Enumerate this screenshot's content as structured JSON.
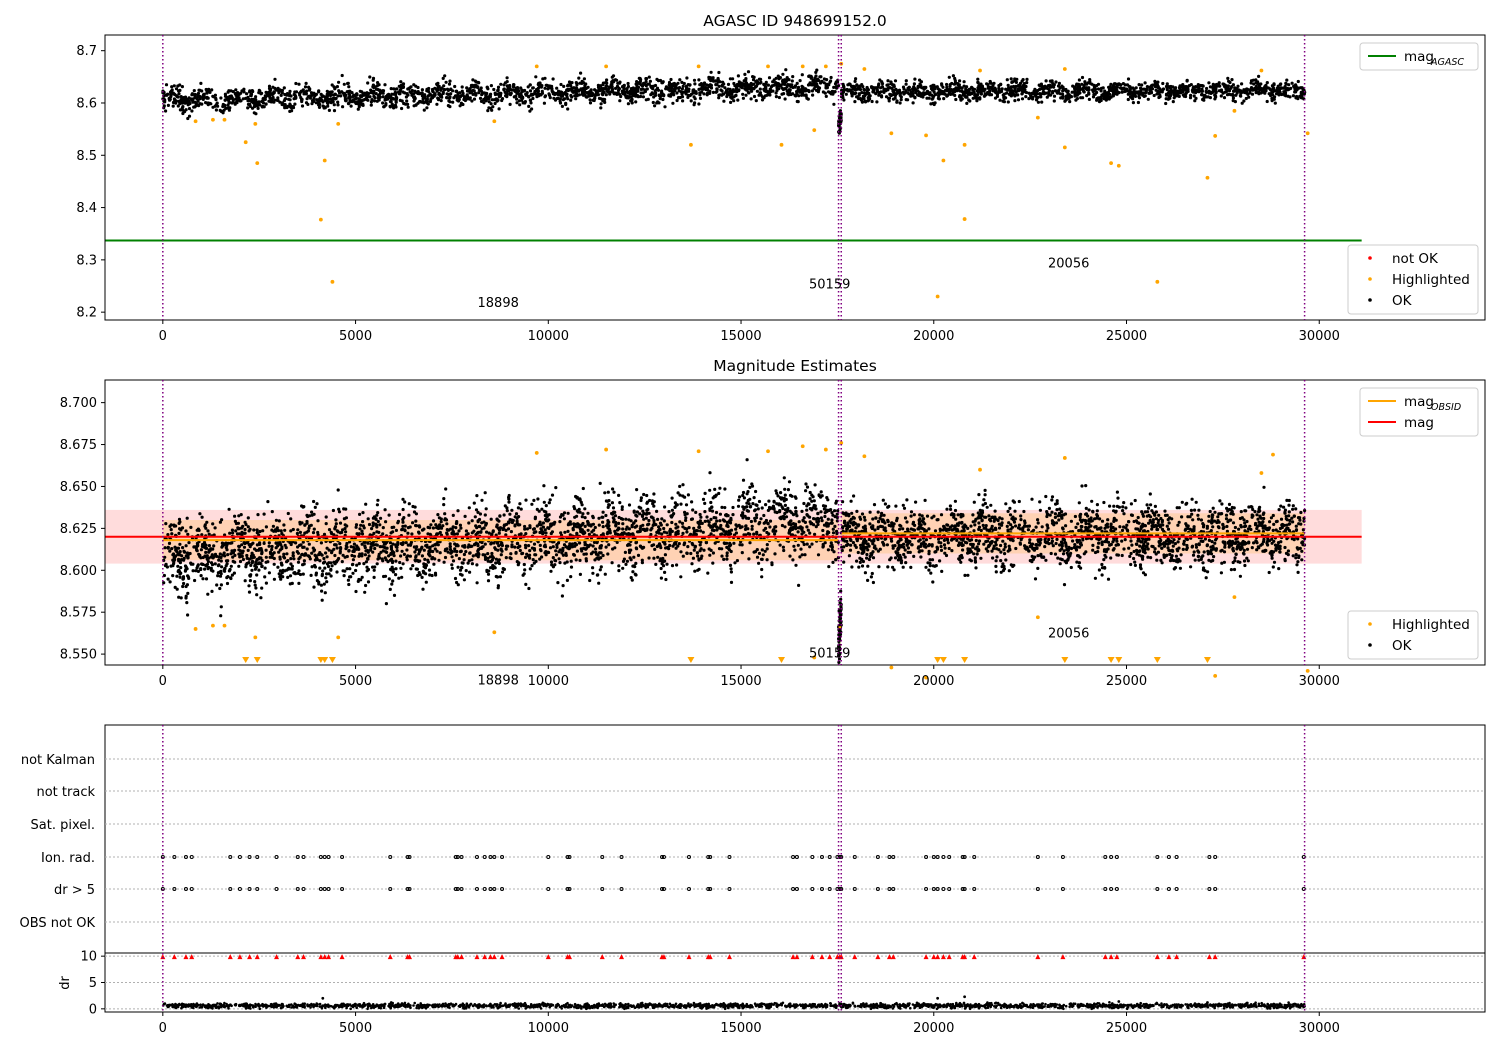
{
  "chart_data": [
    {
      "type": "scatter",
      "title": "AGASC ID 948699152.0",
      "xlim": [
        -1500,
        34300
      ],
      "ylim": [
        8.185,
        8.73
      ],
      "xticks": [
        0,
        5000,
        10000,
        15000,
        20000,
        25000,
        30000
      ],
      "yticks": [
        8.2,
        8.3,
        8.4,
        8.5,
        8.6,
        8.7
      ],
      "ytick_labels": [
        "8.2",
        "8.3",
        "8.4",
        "8.5",
        "8.6",
        "8.7"
      ],
      "obsid_boundaries": [
        0,
        17530,
        17600,
        29620
      ],
      "annotations": [
        {
          "text": "18898",
          "x": 8700,
          "y": 8.21
        },
        {
          "text": "50159",
          "x": 17300,
          "y": 8.245
        },
        {
          "text": "20056",
          "x": 23500,
          "y": 8.285
        }
      ],
      "series": [
        {
          "name": "OK",
          "color": "#000000",
          "segments": [
            {
              "x0": 0,
              "x1": 17530,
              "start": 8.605,
              "end": 8.632,
              "spread": 0.012
            },
            {
              "x0": 17530,
              "x1": 17600,
              "start": 8.555,
              "end": 8.575,
              "spread": 0.01
            },
            {
              "x0": 17600,
              "x1": 29620,
              "start": 8.622,
              "end": 8.624,
              "spread": 0.01
            }
          ]
        },
        {
          "name": "Highlighted",
          "color": "#ffa500",
          "points": [
            [
              850,
              8.565
            ],
            [
              1300,
              8.568
            ],
            [
              1600,
              8.568
            ],
            [
              2150,
              8.525
            ],
            [
              2400,
              8.56
            ],
            [
              2450,
              8.485
            ],
            [
              4100,
              8.377
            ],
            [
              4200,
              8.49
            ],
            [
              4400,
              8.258
            ],
            [
              4550,
              8.56
            ],
            [
              8600,
              8.565
            ],
            [
              9700,
              8.67
            ],
            [
              11500,
              8.67
            ],
            [
              13700,
              8.52
            ],
            [
              13900,
              8.67
            ],
            [
              15700,
              8.67
            ],
            [
              16050,
              8.52
            ],
            [
              16600,
              8.67
            ],
            [
              16900,
              8.548
            ],
            [
              17200,
              8.67
            ],
            [
              17600,
              8.675
            ],
            [
              18200,
              8.665
            ],
            [
              18900,
              8.542
            ],
            [
              19800,
              8.538
            ],
            [
              20100,
              8.23
            ],
            [
              20250,
              8.49
            ],
            [
              20800,
              8.378
            ],
            [
              20800,
              8.52
            ],
            [
              21200,
              8.662
            ],
            [
              22700,
              8.572
            ],
            [
              23400,
              8.515
            ],
            [
              23400,
              8.665
            ],
            [
              24600,
              8.485
            ],
            [
              24800,
              8.48
            ],
            [
              25800,
              8.258
            ],
            [
              27100,
              8.457
            ],
            [
              27300,
              8.537
            ],
            [
              27800,
              8.585
            ],
            [
              28500,
              8.662
            ],
            [
              29700,
              8.542
            ]
          ]
        },
        {
          "name": "not OK",
          "color": "#ff0000",
          "points": []
        },
        {
          "name": "mag$_{AGASC}$",
          "color": "#008000",
          "hline": 8.337,
          "x_extent": [
            -1500,
            31100
          ]
        }
      ],
      "legends": [
        {
          "place": "upper right",
          "entries": [
            {
              "label": "mag",
              "sub": "AGASC",
              "kind": "line",
              "color": "#008000"
            }
          ]
        },
        {
          "place": "lower right",
          "entries": [
            {
              "label": "not OK",
              "kind": "dot",
              "color": "#ff0000"
            },
            {
              "label": "Highlighted",
              "kind": "dot",
              "color": "#ffa500"
            },
            {
              "label": "OK",
              "kind": "dot",
              "color": "#000000"
            }
          ]
        }
      ]
    },
    {
      "type": "scatter",
      "title": "Magnitude Estimates",
      "xlim": [
        -1500,
        34300
      ],
      "ylim": [
        8.5435,
        8.7135
      ],
      "xticks": [
        0,
        5000,
        10000,
        15000,
        20000,
        25000,
        30000
      ],
      "yticks": [
        8.55,
        8.575,
        8.6,
        8.625,
        8.65,
        8.675,
        8.7
      ],
      "ytick_labels": [
        "8.550",
        "8.575",
        "8.600",
        "8.625",
        "8.650",
        "8.675",
        "8.700"
      ],
      "obsid_boundaries": [
        0,
        17530,
        17600,
        29620
      ],
      "annotations": [
        {
          "text": "18898",
          "x": 8700,
          "y": 8.532
        },
        {
          "text": "50159",
          "x": 17300,
          "y": 8.548
        },
        {
          "text": "20056",
          "x": 23500,
          "y": 8.56
        }
      ],
      "mag": 8.62,
      "mag_band": [
        8.604,
        8.636
      ],
      "mag_obsid": [
        {
          "x0": 0,
          "x1": 17530,
          "value": 8.618
        },
        {
          "x0": 17530,
          "x1": 17600,
          "value": 8.566
        },
        {
          "x0": 17600,
          "x1": 29620,
          "value": 8.622
        }
      ],
      "series": [
        {
          "name": "OK",
          "color": "#000000",
          "segments": [
            {
              "x0": 0,
              "x1": 17530,
              "start": 8.607,
              "end": 8.63,
              "spread": 0.012
            },
            {
              "x0": 17530,
              "x1": 17600,
              "start": 8.555,
              "end": 8.575,
              "spread": 0.008
            },
            {
              "x0": 17600,
              "x1": 29620,
              "start": 8.62,
              "end": 8.622,
              "spread": 0.01
            }
          ]
        },
        {
          "name": "Highlighted",
          "color": "#ffa500",
          "points": [
            [
              850,
              8.565
            ],
            [
              1300,
              8.567
            ],
            [
              1600,
              8.567
            ],
            [
              2400,
              8.56
            ],
            [
              4550,
              8.56
            ],
            [
              8600,
              8.563
            ],
            [
              9700,
              8.67
            ],
            [
              11500,
              8.672
            ],
            [
              13900,
              8.671
            ],
            [
              15700,
              8.671
            ],
            [
              16600,
              8.674
            ],
            [
              16900,
              8.548
            ],
            [
              17200,
              8.672
            ],
            [
              17600,
              8.676
            ],
            [
              18200,
              8.668
            ],
            [
              18900,
              8.542
            ],
            [
              19800,
              8.536
            ],
            [
              21200,
              8.66
            ],
            [
              22700,
              8.572
            ],
            [
              23400,
              8.667
            ],
            [
              27300,
              8.537
            ],
            [
              27800,
              8.584
            ],
            [
              28500,
              8.658
            ],
            [
              28800,
              8.669
            ],
            [
              29700,
              8.54
            ]
          ]
        },
        {
          "name": "Highlighted (below axis)",
          "color": "#ffa500",
          "marker": "triangle-down",
          "x": [
            2150,
            2450,
            4100,
            4200,
            4400,
            13700,
            16050,
            20100,
            20250,
            20800,
            23400,
            24600,
            24800,
            25800,
            27100
          ]
        },
        {
          "name": "mag$_{OBSID}$",
          "color": "#ffa500",
          "kind": "line"
        },
        {
          "name": "mag",
          "color": "#ff0000",
          "kind": "line"
        }
      ],
      "legends": [
        {
          "place": "upper right",
          "entries": [
            {
              "label": "mag",
              "sub": "OBSID",
              "kind": "line",
              "color": "#ffa500"
            },
            {
              "label": "mag",
              "kind": "line",
              "color": "#ff0000"
            }
          ]
        },
        {
          "place": "lower right",
          "entries": [
            {
              "label": "Highlighted",
              "kind": "dot",
              "color": "#ffa500"
            },
            {
              "label": "OK",
              "kind": "dot",
              "color": "#000000"
            }
          ]
        }
      ]
    },
    {
      "type": "scatter",
      "xlim": [
        -1500,
        34300
      ],
      "obsid_boundaries": [
        0,
        17530,
        17600,
        29620
      ],
      "xticks": [
        0,
        5000,
        10000,
        15000,
        20000,
        25000,
        30000
      ],
      "flags": [
        "not Kalman",
        "not track",
        "Sat. pixel.",
        "Ion. rad.",
        "dr > 5",
        "OBS not OK"
      ],
      "flag_x": [
        0,
        300,
        600,
        750,
        1750,
        2000,
        2250,
        2450,
        2950,
        3500,
        3650,
        4100,
        4200,
        4300,
        4650,
        5900,
        6350,
        6400,
        7600,
        7650,
        7750,
        8150,
        8350,
        8500,
        8600,
        8800,
        10000,
        10500,
        10550,
        11400,
        11900,
        12950,
        13000,
        13650,
        14150,
        14200,
        14700,
        16350,
        16450,
        16850,
        17100,
        17300,
        17500,
        17560,
        17600,
        17950,
        18550,
        18850,
        18950,
        19800,
        20000,
        20100,
        20250,
        20400,
        20750,
        20800,
        21050,
        22700,
        23350,
        24450,
        24600,
        24750,
        25800,
        26100,
        26300,
        27150,
        27300,
        29600
      ],
      "dr_ylabel": "dr",
      "dr_ylim": [
        -0.6,
        10.6
      ],
      "dr_yticks": [
        0,
        5,
        10
      ],
      "dr_values": [
        {
          "x0": 0,
          "x1": 29620,
          "level": 0.6,
          "spread": 0.5
        },
        {
          "outliers": [
            [
              4150,
              2.0
            ],
            [
              20100,
              2.0
            ],
            [
              20800,
              2.3
            ],
            [
              24800,
              1.4
            ],
            [
              27100,
              1.2
            ]
          ]
        }
      ]
    }
  ]
}
